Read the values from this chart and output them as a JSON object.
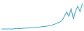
{
  "values": [
    1,
    1,
    1,
    1,
    1,
    1,
    2,
    2,
    2,
    2,
    3,
    3,
    3,
    4,
    4,
    4,
    5,
    5,
    6,
    6,
    7,
    8,
    9,
    10,
    12,
    14,
    16,
    20,
    28,
    38,
    28,
    45,
    22,
    40,
    50,
    38,
    55
  ],
  "line_color": "#3399cc",
  "background_color": "#ffffff",
  "ylim": [
    0,
    60
  ],
  "linewidth": 0.7
}
